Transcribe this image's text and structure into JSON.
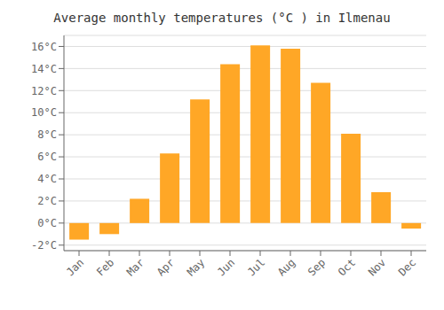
{
  "chart_data": {
    "type": "bar",
    "title": "Average monthly temperatures (°C ) in Ilmenau",
    "categories": [
      "Jan",
      "Feb",
      "Mar",
      "Apr",
      "May",
      "Jun",
      "Jul",
      "Aug",
      "Sep",
      "Oct",
      "Nov",
      "Dec"
    ],
    "values": [
      -1.5,
      -1.0,
      2.2,
      6.3,
      11.2,
      14.4,
      16.1,
      15.8,
      12.7,
      8.1,
      2.8,
      -0.5
    ],
    "color": "#FFA726",
    "ylim": [
      -2.5,
      17.0
    ],
    "yticks": [
      {
        "value": -2,
        "label": "-2°C"
      },
      {
        "value": 0,
        "label": "0°C"
      },
      {
        "value": 2,
        "label": "2°C"
      },
      {
        "value": 4,
        "label": "4°C"
      },
      {
        "value": 6,
        "label": "6°C"
      },
      {
        "value": 8,
        "label": "8°C"
      },
      {
        "value": 10,
        "label": "10°C"
      },
      {
        "value": 12,
        "label": "12°C"
      },
      {
        "value": 14,
        "label": "14°C"
      },
      {
        "value": 16,
        "label": "16°C"
      }
    ],
    "grid": true
  }
}
